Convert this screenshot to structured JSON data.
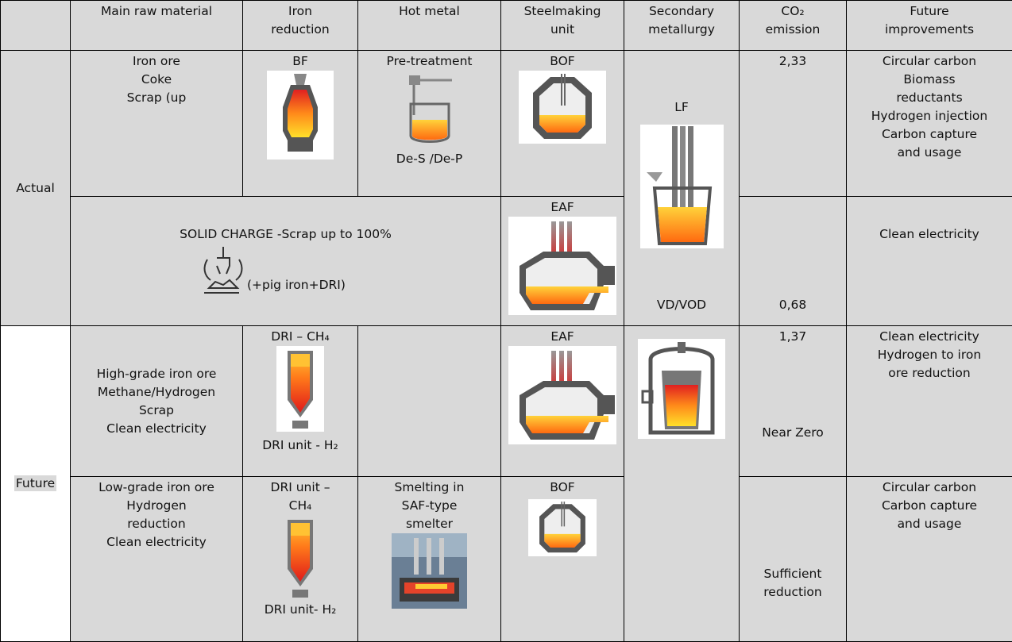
{
  "header": {
    "cells": [
      [
        "Main raw material"
      ],
      [
        "Iron",
        "reduction"
      ],
      [
        "Hot metal"
      ],
      [
        "Steelmaking",
        "unit"
      ],
      [
        "Secondary",
        "metallurgy"
      ],
      [
        "CO₂",
        "emission"
      ],
      [
        "Future",
        "improvements"
      ]
    ]
  },
  "groups": {
    "actual": "Actual",
    "future": "Future"
  },
  "rows": [
    {
      "raw_material": [
        "Iron ore",
        "Coke",
        "Scrap (up"
      ],
      "iron_reduction": "BF",
      "hot_metal_top": "Pre-treatment",
      "hot_metal_bottom": "De-S /De-P",
      "steelmaking": "BOF",
      "secondary_top": "LF",
      "secondary_bottom": "VD/VOD",
      "co2": "2,33",
      "improvements": [
        "Circular carbon",
        "Biomass",
        "reductants",
        "Hydrogen injection",
        "Carbon capture",
        "and usage"
      ]
    },
    {
      "charge": "SOLID CHARGE -Scrap up to 100%",
      "charge_note": "(+pig iron+DRI)",
      "steelmaking": "EAF",
      "co2": "0,68",
      "improvements": [
        "Clean electricity"
      ]
    },
    {
      "raw_material": [
        "High-grade iron ore",
        "Methane/Hydrogen",
        "Scrap",
        "Clean electricity"
      ],
      "iron_reduction_top": [
        "DRI – CH₄"
      ],
      "iron_reduction_bottom": "DRI unit - H₂",
      "steelmaking": "EAF",
      "co2_top": "1,37",
      "co2_bottom": "Near Zero",
      "improvements": [
        "Clean electricity",
        "Hydrogen to iron",
        "ore reduction"
      ]
    },
    {
      "raw_material": [
        "Low-grade iron ore",
        "Hydrogen",
        "reduction",
        "Clean electricity"
      ],
      "iron_reduction_top": [
        "DRI unit –",
        "CH₄"
      ],
      "iron_reduction_bottom": "DRI unit- H₂",
      "hot_metal": [
        "Smelting in",
        "SAF-type",
        "smelter"
      ],
      "steelmaking": "BOF",
      "co2": [
        "Sufficient",
        "reduction"
      ],
      "improvements": [
        "Circular carbon",
        "Carbon capture",
        "and usage"
      ]
    }
  ]
}
